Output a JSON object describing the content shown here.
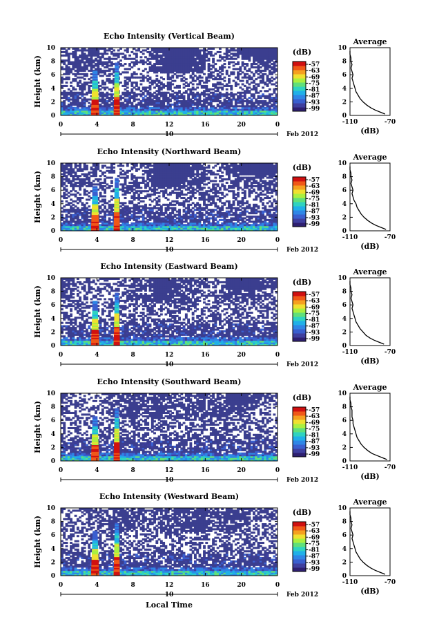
{
  "colorbar": {
    "unit": "(dB)",
    "ticks": [
      "-57",
      "-63",
      "-69",
      "-75",
      "-81",
      "-87",
      "-93",
      "-99"
    ],
    "colors": [
      "#2e1f70",
      "#3f3f9f",
      "#3a5fcf",
      "#2f86e6",
      "#20b0e8",
      "#2fd3c0",
      "#60e07a",
      "#aaf040",
      "#f0e030",
      "#f5a020",
      "#f05818",
      "#d01010"
    ]
  },
  "background_color": "#3b3e8f",
  "date_label": "Feb 2012",
  "bottom_xlabel": "Local Time",
  "chart_data": [
    {
      "type": "heatmap",
      "title": "Echo Intensity (Vertical Beam)",
      "ylabel": "Height (km)",
      "xticks": [
        "0",
        "4",
        "8",
        "12",
        "16",
        "20",
        "0"
      ],
      "yticks": [
        "0",
        "2",
        "4",
        "6",
        "8",
        "10"
      ],
      "xlim": [
        0,
        24
      ],
      "ylim": [
        0,
        10
      ],
      "date_tick": "10",
      "average_profile": {
        "title": "Average",
        "xlabel": "(dB)",
        "xticks": [
          "-110",
          "-70"
        ],
        "xlim": [
          -110,
          -70
        ],
        "yticks": [
          "0",
          "2",
          "4",
          "6",
          "8",
          "10"
        ],
        "ylim": [
          0,
          10
        ],
        "x": [
          -75,
          -80,
          -85,
          -89,
          -93,
          -97,
          -100,
          -102,
          -104,
          -105,
          -106,
          -107,
          -108,
          -107,
          -108,
          -109,
          -108,
          -109,
          -109,
          -110,
          -110
        ],
        "y": [
          0.2,
          0.5,
          0.8,
          1.1,
          1.5,
          2.0,
          2.5,
          3.0,
          3.5,
          4.0,
          4.5,
          5.0,
          5.5,
          6.0,
          6.5,
          7.0,
          7.5,
          8.0,
          8.5,
          9.0,
          9.5
        ]
      }
    },
    {
      "type": "heatmap",
      "title": "Echo Intensity (Northward Beam)",
      "ylabel": "Height (km)",
      "xticks": [
        "0",
        "4",
        "8",
        "12",
        "16",
        "20",
        "0"
      ],
      "yticks": [
        "0",
        "2",
        "4",
        "6",
        "8",
        "10"
      ],
      "xlim": [
        0,
        24
      ],
      "ylim": [
        0,
        10
      ],
      "date_tick": "10",
      "average_profile": {
        "title": "Average",
        "xlabel": "(dB)",
        "xticks": [
          "-110",
          "-70"
        ],
        "xlim": [
          -110,
          -70
        ],
        "yticks": [
          "0",
          "2",
          "4",
          "6",
          "8",
          "10"
        ],
        "ylim": [
          0,
          10
        ],
        "x": [
          -74,
          -79,
          -84,
          -88,
          -92,
          -96,
          -99,
          -101,
          -103,
          -104,
          -106,
          -107,
          -108,
          -107,
          -108,
          -109,
          -108,
          -109,
          -109,
          -110,
          -110
        ],
        "y": [
          0.2,
          0.5,
          0.8,
          1.1,
          1.5,
          2.0,
          2.5,
          3.0,
          3.5,
          4.0,
          4.5,
          5.0,
          5.5,
          6.0,
          6.5,
          7.0,
          7.5,
          8.0,
          8.5,
          9.0,
          9.5
        ]
      }
    },
    {
      "type": "heatmap",
      "title": "Echo Intensity (Eastward Beam)",
      "ylabel": "Height (km)",
      "xticks": [
        "0",
        "4",
        "8",
        "12",
        "16",
        "20",
        "0"
      ],
      "yticks": [
        "0",
        "2",
        "4",
        "6",
        "8",
        "10"
      ],
      "xlim": [
        0,
        24
      ],
      "ylim": [
        0,
        10
      ],
      "date_tick": "10",
      "average_profile": {
        "title": "Average",
        "xlabel": "(dB)",
        "xticks": [
          "-110",
          "-70"
        ],
        "xlim": [
          -110,
          -70
        ],
        "yticks": [
          "0",
          "2",
          "4",
          "6",
          "8",
          "10"
        ],
        "ylim": [
          0,
          10
        ],
        "x": [
          -76,
          -81,
          -86,
          -90,
          -94,
          -97,
          -100,
          -102,
          -104,
          -105,
          -106,
          -107,
          -108,
          -107,
          -108,
          -109,
          -108,
          -109,
          -109,
          -110,
          -110
        ],
        "y": [
          0.2,
          0.5,
          0.8,
          1.1,
          1.5,
          2.0,
          2.5,
          3.0,
          3.5,
          4.0,
          4.5,
          5.0,
          5.5,
          6.0,
          6.5,
          7.0,
          7.5,
          8.0,
          8.5,
          9.0,
          9.5
        ]
      }
    },
    {
      "type": "heatmap",
      "title": "Echo Intensity (Southward Beam)",
      "ylabel": "Height (km)",
      "xticks": [
        "0",
        "4",
        "8",
        "12",
        "16",
        "20",
        "0"
      ],
      "yticks": [
        "0",
        "2",
        "4",
        "6",
        "8",
        "10"
      ],
      "xlim": [
        0,
        24
      ],
      "ylim": [
        0,
        10
      ],
      "date_tick": "10",
      "average_profile": {
        "title": "Average",
        "xlabel": "(dB)",
        "xticks": [
          "-110",
          "-70"
        ],
        "xlim": [
          -110,
          -70
        ],
        "yticks": [
          "0",
          "2",
          "4",
          "6",
          "8",
          "10"
        ],
        "ylim": [
          0,
          10
        ],
        "x": [
          -73,
          -78,
          -83,
          -88,
          -92,
          -96,
          -99,
          -101,
          -103,
          -104,
          -105,
          -106,
          -107,
          -107,
          -108,
          -108,
          -108,
          -109,
          -109,
          -110,
          -110
        ],
        "y": [
          0.2,
          0.5,
          0.8,
          1.1,
          1.5,
          2.0,
          2.5,
          3.0,
          3.5,
          4.0,
          4.5,
          5.0,
          5.5,
          6.0,
          6.5,
          7.0,
          7.5,
          8.0,
          8.5,
          9.0,
          9.5
        ]
      }
    },
    {
      "type": "heatmap",
      "title": "Echo Intensity (Westward Beam)",
      "ylabel": "Height (km)",
      "xticks": [
        "0",
        "4",
        "8",
        "12",
        "16",
        "20",
        "0"
      ],
      "yticks": [
        "0",
        "2",
        "4",
        "6",
        "8",
        "10"
      ],
      "xlim": [
        0,
        24
      ],
      "ylim": [
        0,
        10
      ],
      "date_tick": "10",
      "average_profile": {
        "title": "Average",
        "xlabel": "(dB)",
        "xticks": [
          "-110",
          "-70"
        ],
        "xlim": [
          -110,
          -70
        ],
        "yticks": [
          "0",
          "2",
          "4",
          "6",
          "8",
          "10"
        ],
        "ylim": [
          0,
          10
        ],
        "x": [
          -75,
          -80,
          -85,
          -89,
          -93,
          -97,
          -100,
          -102,
          -104,
          -105,
          -106,
          -107,
          -108,
          -107,
          -108,
          -109,
          -108,
          -109,
          -109,
          -110,
          -110
        ],
        "y": [
          0.2,
          0.5,
          0.8,
          1.1,
          1.5,
          2.0,
          2.5,
          3.0,
          3.5,
          4.0,
          4.5,
          5.0,
          5.5,
          6.0,
          6.5,
          7.0,
          7.5,
          8.0,
          8.5,
          9.0,
          9.5
        ]
      }
    }
  ]
}
